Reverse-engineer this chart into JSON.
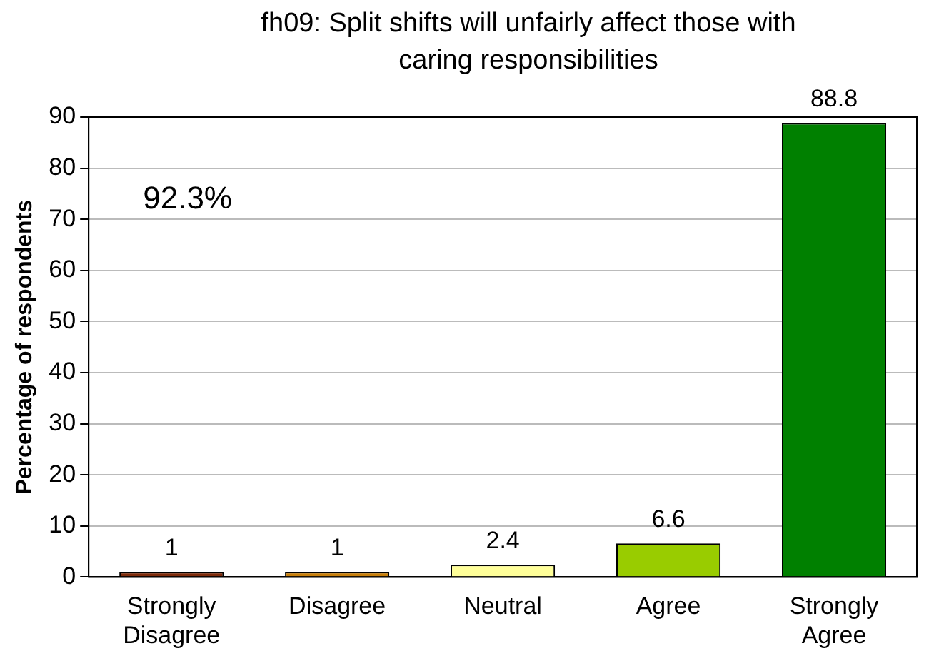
{
  "chart_data": {
    "type": "bar",
    "title": "fh09: Split shifts will unfairly affect those with caring responsibilities",
    "ylabel": "Percentage of respondents",
    "categories": [
      "Strongly Disagree",
      "Disagree",
      "Neutral",
      "Agree",
      "Strongly Agree"
    ],
    "values": [
      1,
      1,
      2.4,
      6.6,
      88.8
    ],
    "colors": [
      "#7f2b0a",
      "#c87f0a",
      "#ffff99",
      "#99cc00",
      "#008000"
    ],
    "ylim": [
      0,
      90
    ],
    "yticks": [
      0,
      10,
      20,
      30,
      40,
      50,
      60,
      70,
      80,
      90
    ],
    "grid": "y",
    "legend": false,
    "data_labels": true,
    "annotations": [
      "92.3%"
    ]
  }
}
